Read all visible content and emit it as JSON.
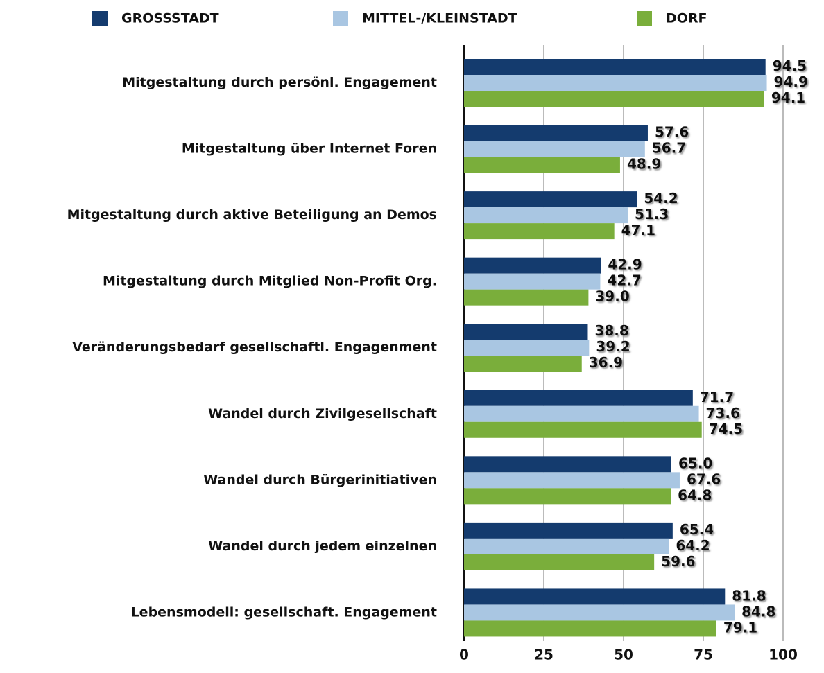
{
  "chart_data": {
    "type": "barh",
    "categories": [
      "Mitgestaltung durch persönl. Engagement",
      "Mitgestaltung über Internet Foren",
      "Mitgestaltung durch aktive Beteiligung an Demos",
      "Mitgestaltung durch Mitglied Non-Profit Org.",
      "Veränderungsbedarf gesellschaftl. Engagenment",
      "Wandel durch Zivilgesellschaft",
      "Wandel durch Bürgerinitiativen",
      "Wandel durch jedem einzelnen",
      "Lebensmodell: gesellschaft. Engagement"
    ],
    "series": [
      {
        "name": "GROSSSTADT",
        "color": "#143b6e",
        "values": [
          94.5,
          57.6,
          54.2,
          42.9,
          38.8,
          71.7,
          65.0,
          65.4,
          81.8
        ],
        "value_labels": [
          "94.5",
          "57.6",
          "54.2",
          "42.9",
          "38.8",
          "71.7",
          "65.0",
          "65.4",
          "81.8"
        ]
      },
      {
        "name": "MITTEL-/KLEINSTADT",
        "color": "#a9c6e2",
        "values": [
          94.9,
          56.7,
          51.3,
          42.7,
          39.2,
          73.6,
          67.6,
          64.2,
          84.8
        ],
        "value_labels": [
          "94.9",
          "56.7",
          "51.3",
          "42.7",
          "39.2",
          "73.6",
          "67.6",
          "64.2",
          "84.8"
        ]
      },
      {
        "name": "DORF",
        "color": "#7aae3b",
        "values": [
          94.1,
          48.9,
          47.1,
          39.0,
          36.9,
          74.5,
          64.8,
          59.6,
          79.1
        ],
        "value_labels": [
          "94.1",
          "48.9",
          "47.1",
          "39.0",
          "36.9",
          "74.5",
          "64.8",
          "59.6",
          "79.1"
        ]
      }
    ],
    "xlim": [
      0,
      100
    ],
    "xticks": [
      0,
      25,
      50,
      75,
      100
    ],
    "grid": true,
    "legend": "top"
  }
}
